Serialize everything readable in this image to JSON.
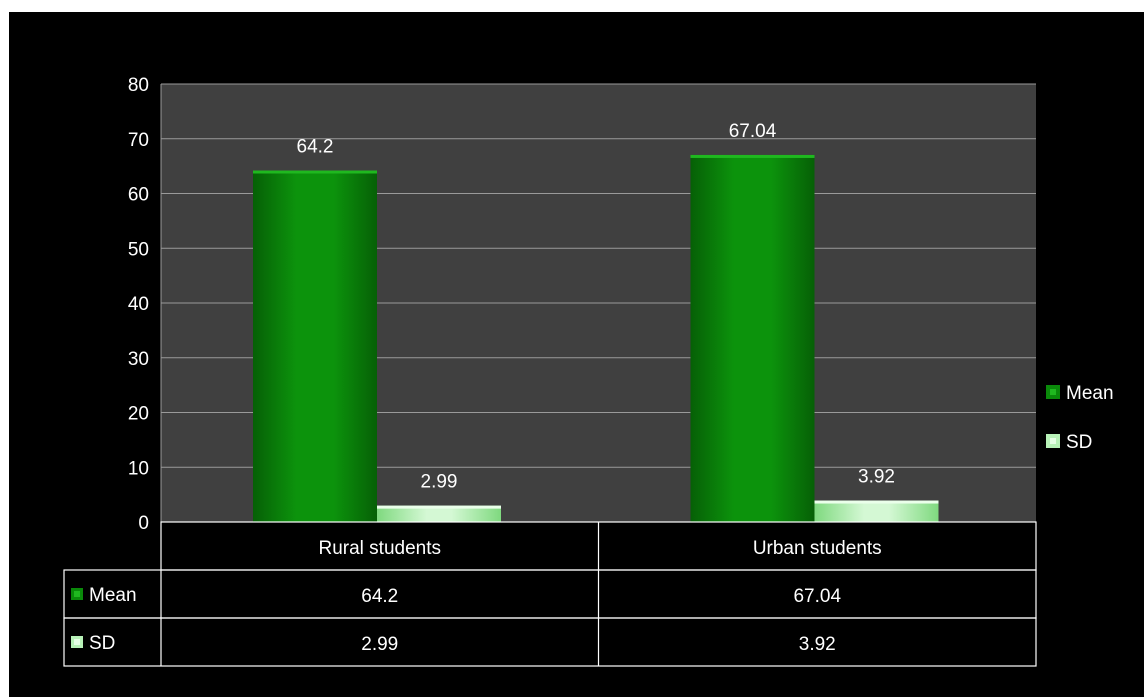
{
  "chart_data": {
    "type": "bar",
    "categories": [
      "Rural students",
      "Urban students"
    ],
    "series": [
      {
        "name": "Mean",
        "values": [
          64.2,
          67.04
        ],
        "labels": [
          "64.2",
          "67.04"
        ],
        "color": "#0a8a0a"
      },
      {
        "name": "SD",
        "values": [
          2.99,
          3.92
        ],
        "labels": [
          "2.99",
          "3.92"
        ],
        "color": "#b8f2b8"
      }
    ],
    "yticks": [
      "0",
      "10",
      "20",
      "30",
      "40",
      "50",
      "60",
      "70",
      "80"
    ],
    "ylim": [
      0,
      80
    ],
    "grid": true,
    "legend": "right",
    "data_table": true,
    "plot_background": "#404040",
    "background": "#000000"
  }
}
